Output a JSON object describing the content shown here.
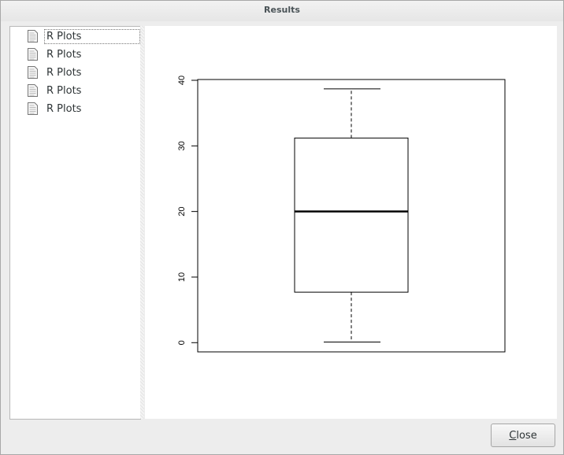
{
  "window": {
    "title": "Results"
  },
  "results_list": {
    "items": [
      {
        "label": "R Plots",
        "icon": "document-icon",
        "selected": true
      },
      {
        "label": "R Plots",
        "icon": "document-icon",
        "selected": false
      },
      {
        "label": "R Plots",
        "icon": "document-icon",
        "selected": false
      },
      {
        "label": "R Plots",
        "icon": "document-icon",
        "selected": false
      },
      {
        "label": "R Plots",
        "icon": "document-icon",
        "selected": false
      }
    ]
  },
  "buttons": {
    "close_mnemonic": "C",
    "close_rest": "lose"
  },
  "chart_data": {
    "type": "boxplot",
    "title": "",
    "xlabel": "",
    "ylabel": "",
    "ylim": [
      0,
      40
    ],
    "yticks": [
      "0",
      "10",
      "20",
      "30",
      "40"
    ],
    "box": {
      "min": 0.1,
      "q1": 7.7,
      "median": 20.0,
      "q3": 31.2,
      "max": 38.7
    },
    "grid": false
  }
}
